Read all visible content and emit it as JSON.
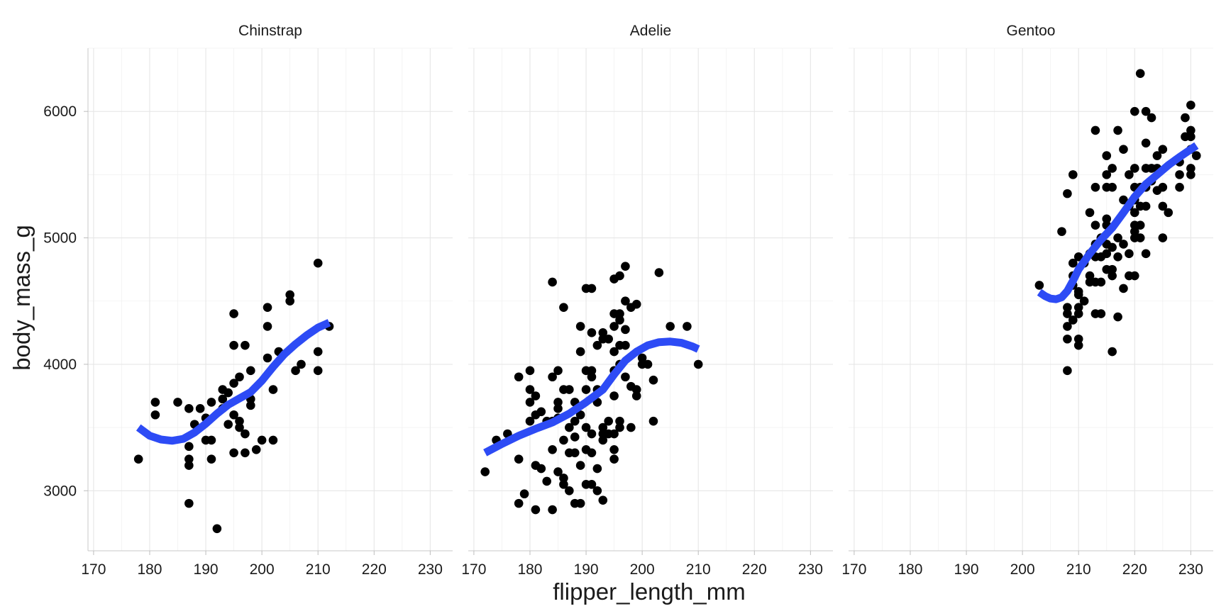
{
  "chart_data": {
    "type": "scatter",
    "xlabel": "flipper_length_mm",
    "ylabel": "body_mass_g",
    "xlim": [
      169,
      234
    ],
    "ylim": [
      2525,
      6500
    ],
    "x_ticks": [
      170,
      180,
      190,
      200,
      210,
      220,
      230
    ],
    "y_ticks": [
      3000,
      4000,
      5000,
      6000
    ],
    "grid": true,
    "colors": {
      "points": "#000000",
      "smooth": "#2D4BF5"
    },
    "panels": [
      {
        "name": "Chinstrap",
        "points": [
          [
            178,
            3250
          ],
          [
            181,
            3700
          ],
          [
            181,
            3600
          ],
          [
            185,
            3700
          ],
          [
            187,
            3650
          ],
          [
            187,
            3350
          ],
          [
            187,
            3250
          ],
          [
            187,
            3200
          ],
          [
            187,
            2900
          ],
          [
            188,
            3525
          ],
          [
            189,
            3650
          ],
          [
            190,
            3575
          ],
          [
            190,
            3400
          ],
          [
            191,
            3700
          ],
          [
            191,
            3400
          ],
          [
            191,
            3250
          ],
          [
            192,
            2700
          ],
          [
            193,
            3800
          ],
          [
            193,
            3725
          ],
          [
            193,
            3650
          ],
          [
            194,
            3775
          ],
          [
            194,
            3525
          ],
          [
            195,
            4400
          ],
          [
            195,
            4150
          ],
          [
            195,
            3850
          ],
          [
            195,
            3600
          ],
          [
            195,
            3300
          ],
          [
            196,
            3900
          ],
          [
            196,
            3550
          ],
          [
            196,
            3500
          ],
          [
            197,
            4150
          ],
          [
            197,
            3450
          ],
          [
            197,
            3300
          ],
          [
            198,
            3950
          ],
          [
            198,
            3725
          ],
          [
            198,
            3675
          ],
          [
            199,
            3325
          ],
          [
            200,
            3400
          ],
          [
            201,
            4450
          ],
          [
            201,
            4300
          ],
          [
            201,
            4050
          ],
          [
            202,
            3800
          ],
          [
            202,
            3400
          ],
          [
            203,
            4100
          ],
          [
            205,
            4550
          ],
          [
            205,
            4500
          ],
          [
            206,
            3950
          ],
          [
            207,
            4000
          ],
          [
            210,
            4800
          ],
          [
            210,
            4100
          ],
          [
            210,
            3950
          ],
          [
            212,
            4300
          ]
        ],
        "smooth": [
          [
            178,
            3500
          ],
          [
            180,
            3435
          ],
          [
            182,
            3405
          ],
          [
            184,
            3395
          ],
          [
            186,
            3410
          ],
          [
            188,
            3460
          ],
          [
            190,
            3530
          ],
          [
            192,
            3610
          ],
          [
            194,
            3680
          ],
          [
            196,
            3730
          ],
          [
            198,
            3780
          ],
          [
            200,
            3870
          ],
          [
            202,
            3980
          ],
          [
            204,
            4080
          ],
          [
            206,
            4160
          ],
          [
            208,
            4230
          ],
          [
            210,
            4290
          ],
          [
            212,
            4330
          ]
        ]
      },
      {
        "name": "Adelie",
        "points": [
          [
            172,
            3150
          ],
          [
            174,
            3400
          ],
          [
            176,
            3450
          ],
          [
            178,
            3900
          ],
          [
            178,
            3250
          ],
          [
            178,
            2900
          ],
          [
            179,
            2975
          ],
          [
            180,
            3950
          ],
          [
            180,
            3800
          ],
          [
            180,
            3700
          ],
          [
            180,
            3550
          ],
          [
            181,
            3750
          ],
          [
            181,
            3600
          ],
          [
            181,
            3200
          ],
          [
            181,
            2850
          ],
          [
            182,
            3625
          ],
          [
            182,
            3175
          ],
          [
            183,
            3550
          ],
          [
            183,
            3075
          ],
          [
            184,
            4650
          ],
          [
            184,
            3900
          ],
          [
            184,
            3550
          ],
          [
            184,
            3325
          ],
          [
            184,
            2850
          ],
          [
            185,
            3950
          ],
          [
            185,
            3700
          ],
          [
            185,
            3650
          ],
          [
            185,
            3575
          ],
          [
            185,
            3150
          ],
          [
            186,
            4450
          ],
          [
            186,
            3800
          ],
          [
            186,
            3400
          ],
          [
            186,
            3100
          ],
          [
            186,
            3050
          ],
          [
            187,
            3800
          ],
          [
            187,
            3500
          ],
          [
            187,
            3300
          ],
          [
            187,
            3000
          ],
          [
            188,
            3700
          ],
          [
            188,
            3550
          ],
          [
            188,
            3425
          ],
          [
            188,
            3300
          ],
          [
            188,
            2900
          ],
          [
            189,
            4300
          ],
          [
            189,
            4100
          ],
          [
            189,
            3600
          ],
          [
            189,
            3200
          ],
          [
            189,
            2900
          ],
          [
            190,
            4600
          ],
          [
            190,
            3950
          ],
          [
            190,
            3800
          ],
          [
            190,
            3500
          ],
          [
            190,
            3325
          ],
          [
            190,
            3050
          ],
          [
            191,
            4600
          ],
          [
            191,
            4250
          ],
          [
            191,
            3950
          ],
          [
            191,
            3900
          ],
          [
            191,
            3450
          ],
          [
            191,
            3300
          ],
          [
            191,
            3050
          ],
          [
            192,
            4150
          ],
          [
            192,
            3800
          ],
          [
            192,
            3700
          ],
          [
            192,
            3175
          ],
          [
            192,
            3000
          ],
          [
            193,
            4250
          ],
          [
            193,
            4200
          ],
          [
            193,
            3500
          ],
          [
            193,
            3450
          ],
          [
            193,
            3400
          ],
          [
            193,
            2925
          ],
          [
            194,
            4200
          ],
          [
            194,
            3550
          ],
          [
            194,
            3450
          ],
          [
            195,
            4675
          ],
          [
            195,
            4400
          ],
          [
            195,
            4300
          ],
          [
            195,
            4100
          ],
          [
            195,
            3950
          ],
          [
            195,
            3750
          ],
          [
            195,
            3450
          ],
          [
            195,
            3325
          ],
          [
            195,
            3250
          ],
          [
            196,
            4700
          ],
          [
            196,
            4400
          ],
          [
            196,
            4350
          ],
          [
            196,
            4150
          ],
          [
            196,
            4000
          ],
          [
            196,
            3550
          ],
          [
            196,
            3500
          ],
          [
            197,
            4775
          ],
          [
            197,
            4500
          ],
          [
            197,
            4275
          ],
          [
            197,
            4150
          ],
          [
            197,
            3900
          ],
          [
            198,
            4450
          ],
          [
            198,
            3825
          ],
          [
            198,
            3500
          ],
          [
            199,
            4475
          ],
          [
            199,
            3800
          ],
          [
            199,
            3750
          ],
          [
            200,
            4050
          ],
          [
            200,
            4000
          ],
          [
            201,
            4000
          ],
          [
            202,
            3550
          ],
          [
            202,
            3875
          ],
          [
            203,
            4725
          ],
          [
            205,
            4300
          ],
          [
            208,
            4300
          ],
          [
            210,
            4000
          ]
        ],
        "smooth": [
          [
            172,
            3300
          ],
          [
            175,
            3370
          ],
          [
            178,
            3435
          ],
          [
            181,
            3490
          ],
          [
            184,
            3540
          ],
          [
            187,
            3610
          ],
          [
            190,
            3700
          ],
          [
            193,
            3800
          ],
          [
            195,
            3920
          ],
          [
            197,
            4030
          ],
          [
            199,
            4100
          ],
          [
            201,
            4150
          ],
          [
            203,
            4175
          ],
          [
            205,
            4180
          ],
          [
            207,
            4170
          ],
          [
            209,
            4140
          ],
          [
            210,
            4120
          ]
        ]
      },
      {
        "name": "Gentoo",
        "points": [
          [
            203,
            4625
          ],
          [
            207,
            5050
          ],
          [
            208,
            5350
          ],
          [
            208,
            4450
          ],
          [
            208,
            4400
          ],
          [
            208,
            4300
          ],
          [
            208,
            4200
          ],
          [
            208,
            3950
          ],
          [
            209,
            5500
          ],
          [
            209,
            4800
          ],
          [
            209,
            4700
          ],
          [
            209,
            4625
          ],
          [
            209,
            4350
          ],
          [
            210,
            4850
          ],
          [
            210,
            4575
          ],
          [
            210,
            4550
          ],
          [
            210,
            4450
          ],
          [
            210,
            4400
          ],
          [
            210,
            4200
          ],
          [
            210,
            4150
          ],
          [
            211,
            4800
          ],
          [
            211,
            4500
          ],
          [
            212,
            4875
          ],
          [
            212,
            4700
          ],
          [
            212,
            4650
          ],
          [
            212,
            5200
          ],
          [
            213,
            5850
          ],
          [
            213,
            5400
          ],
          [
            213,
            5100
          ],
          [
            213,
            4950
          ],
          [
            213,
            4850
          ],
          [
            213,
            4650
          ],
          [
            213,
            4400
          ],
          [
            214,
            5000
          ],
          [
            214,
            4850
          ],
          [
            214,
            4650
          ],
          [
            214,
            4400
          ],
          [
            215,
            5650
          ],
          [
            215,
            5500
          ],
          [
            215,
            5400
          ],
          [
            215,
            5150
          ],
          [
            215,
            5100
          ],
          [
            215,
            4950
          ],
          [
            215,
            4750
          ],
          [
            215,
            4875
          ],
          [
            216,
            5550
          ],
          [
            216,
            5400
          ],
          [
            216,
            4925
          ],
          [
            216,
            4750
          ],
          [
            216,
            4700
          ],
          [
            216,
            4100
          ],
          [
            217,
            5850
          ],
          [
            217,
            5000
          ],
          [
            217,
            4850
          ],
          [
            217,
            4375
          ],
          [
            218,
            5700
          ],
          [
            218,
            5300
          ],
          [
            218,
            4950
          ],
          [
            218,
            4600
          ],
          [
            219,
            5500
          ],
          [
            219,
            5250
          ],
          [
            219,
            4875
          ],
          [
            219,
            4700
          ],
          [
            220,
            6000
          ],
          [
            220,
            5550
          ],
          [
            220,
            5400
          ],
          [
            220,
            5300
          ],
          [
            220,
            5200
          ],
          [
            220,
            5100
          ],
          [
            220,
            5050
          ],
          [
            220,
            5000
          ],
          [
            220,
            4700
          ],
          [
            221,
            6300
          ],
          [
            221,
            5400
          ],
          [
            221,
            5250
          ],
          [
            221,
            5100
          ],
          [
            221,
            5000
          ],
          [
            222,
            6000
          ],
          [
            222,
            5750
          ],
          [
            222,
            5550
          ],
          [
            222,
            5400
          ],
          [
            222,
            5250
          ],
          [
            222,
            4875
          ],
          [
            223,
            5950
          ],
          [
            223,
            5550
          ],
          [
            223,
            5450
          ],
          [
            224,
            5650
          ],
          [
            224,
            5550
          ],
          [
            224,
            5375
          ],
          [
            225,
            5700
          ],
          [
            225,
            5400
          ],
          [
            225,
            5250
          ],
          [
            225,
            5000
          ],
          [
            226,
            5200
          ],
          [
            228,
            5600
          ],
          [
            228,
            5500
          ],
          [
            228,
            5400
          ],
          [
            229,
            5950
          ],
          [
            229,
            5800
          ],
          [
            230,
            6050
          ],
          [
            230,
            5850
          ],
          [
            230,
            5800
          ],
          [
            230,
            5700
          ],
          [
            230,
            5550
          ],
          [
            230,
            5500
          ],
          [
            231,
            5650
          ]
        ],
        "smooth": [
          [
            203,
            4570
          ],
          [
            204,
            4540
          ],
          [
            205,
            4520
          ],
          [
            206,
            4515
          ],
          [
            207,
            4530
          ],
          [
            208,
            4580
          ],
          [
            209,
            4660
          ],
          [
            210,
            4750
          ],
          [
            212,
            4875
          ],
          [
            214,
            4985
          ],
          [
            216,
            5080
          ],
          [
            218,
            5200
          ],
          [
            220,
            5325
          ],
          [
            222,
            5425
          ],
          [
            224,
            5500
          ],
          [
            226,
            5575
          ],
          [
            228,
            5640
          ],
          [
            230,
            5700
          ],
          [
            231,
            5730
          ]
        ]
      }
    ]
  }
}
